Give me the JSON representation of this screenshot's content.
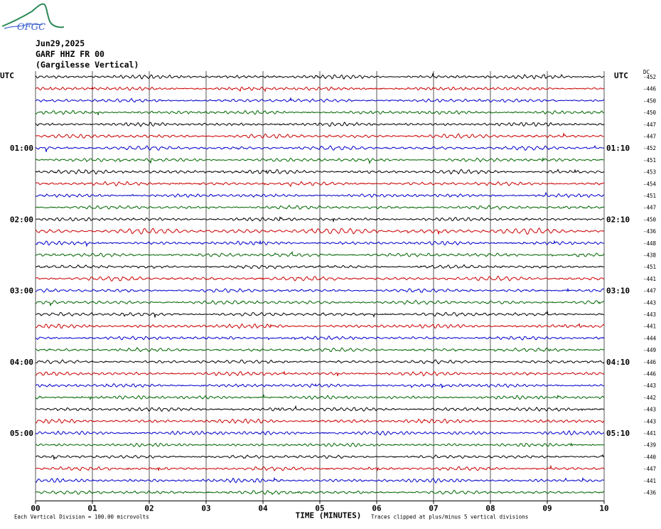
{
  "header": {
    "logo_text": "OFGC",
    "date": "Jun29,2025",
    "station": "GARF HHZ FR 00",
    "location": "(Gargilesse Vertical)"
  },
  "chart_data": {
    "type": "line",
    "title": "Jun29,2025",
    "xlabel": "TIME (MINUTES)",
    "ylabel": "",
    "x_ticks": [
      "00",
      "01",
      "02",
      "03",
      "04",
      "05",
      "06",
      "07",
      "08",
      "09",
      "10"
    ],
    "xlim": [
      0,
      10
    ],
    "left_axis_label": "UTC",
    "right_axis_label": "UTC",
    "dc_label": "DC",
    "left_time_labels": [
      {
        "row": 6,
        "label": "01:00"
      },
      {
        "row": 12,
        "label": "02:00"
      },
      {
        "row": 18,
        "label": "03:00"
      },
      {
        "row": 24,
        "label": "04:00"
      },
      {
        "row": 30,
        "label": "05:00"
      }
    ],
    "right_time_labels": [
      {
        "row": 6,
        "label": "01:10"
      },
      {
        "row": 12,
        "label": "02:10"
      },
      {
        "row": 18,
        "label": "03:10"
      },
      {
        "row": 24,
        "label": "04:10"
      },
      {
        "row": 30,
        "label": "05:10"
      }
    ],
    "trace_colors": [
      "#000000",
      "#cc0000",
      "#0000cc",
      "#006600"
    ],
    "dc_offsets": [
      -452,
      -446,
      -450,
      -450,
      -447,
      -447,
      -452,
      -451,
      -453,
      -454,
      -451,
      -447,
      -450,
      -436,
      -448,
      -438,
      -451,
      -441,
      -447,
      -443,
      -443,
      -441,
      -444,
      -449,
      -446,
      -446,
      -443,
      -442,
      -443,
      -443,
      -441,
      -439,
      -440,
      -447,
      -441,
      -436
    ],
    "footer_note_left": "Each Vertical Division =  100.00 microvolts",
    "footer_note_right": "Traces clipped at plus/minus 5 vertical divisions"
  }
}
